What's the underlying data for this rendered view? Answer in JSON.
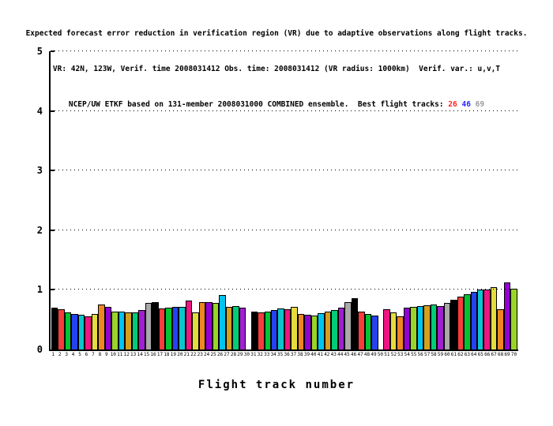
{
  "title": {
    "line1": "Expected forecast error reduction in verification region (VR) due to adaptive observations along flight tracks.",
    "line2": "VR: 42N, 123W, Verif. time 2008031412 Obs. time: 2008031412 (VR radius: 1000km)  Verif. var.: u,v,T",
    "line3_prefix": "NCEP/UW ETKF based on 131-member 2008031000 COMBINED ensemble.  Best flight tracks: ",
    "best_tracks": [
      {
        "label": "26",
        "color": "#ff2020"
      },
      {
        "label": "46",
        "color": "#2828ff"
      },
      {
        "label": "69",
        "color": "#9a9a9a"
      }
    ]
  },
  "chart_data": {
    "type": "bar",
    "title": "Expected forecast error reduction in verification region (VR) due to adaptive observations along flight tracks.",
    "subtitle1": "VR: 42N, 123W, Verif. time 2008031412 Obs. time: 2008031412 (VR radius: 1000km)  Verif. var.: u,v,T",
    "subtitle2": "NCEP/UW ETKF based on 131-member 2008031000 COMBINED ensemble.  Best flight tracks: 26 46 69",
    "xlabel": "Flight track number",
    "ylabel": "",
    "ylim": [
      0,
      5
    ],
    "yticks": [
      0,
      1,
      2,
      3,
      4,
      5
    ],
    "ytick_labels": [
      "0",
      "1",
      "2",
      "3",
      "4",
      "5"
    ],
    "grid": "horizontal dotted lines at y = 1,2,3,4,5; legend none",
    "best_flight_tracks": [
      26,
      46,
      69
    ],
    "categories": [
      1,
      2,
      3,
      4,
      5,
      6,
      7,
      8,
      9,
      10,
      11,
      12,
      13,
      14,
      15,
      16,
      17,
      18,
      19,
      20,
      21,
      22,
      23,
      24,
      25,
      26,
      27,
      28,
      29,
      30,
      31,
      32,
      33,
      34,
      35,
      36,
      37,
      38,
      39,
      40,
      41,
      42,
      43,
      44,
      45,
      46,
      47,
      48,
      49,
      50,
      51,
      52,
      53,
      54,
      55,
      56,
      57,
      58,
      59,
      60,
      61,
      62,
      63,
      64,
      65,
      66,
      67,
      68,
      69,
      70
    ],
    "values": [
      0.7,
      0.68,
      0.62,
      0.6,
      0.58,
      0.55,
      0.6,
      0.75,
      0.71,
      0.64,
      0.63,
      0.62,
      0.62,
      0.66,
      0.78,
      0.79,
      0.69,
      0.7,
      0.71,
      0.72,
      0.82,
      0.62,
      0.8,
      0.79,
      0.78,
      0.91,
      0.71,
      0.73,
      0.7,
      0,
      0.63,
      0.62,
      0.64,
      0.66,
      0.69,
      0.68,
      0.71,
      0.6,
      0.58,
      0.57,
      0.61,
      0.64,
      0.66,
      0.7,
      0.79,
      0.86,
      0.64,
      0.6,
      0.57,
      0,
      0.67,
      0.62,
      0.56,
      0.7,
      0.72,
      0.73,
      0.74,
      0.76,
      0.73,
      0.78,
      0.83,
      0.88,
      0.92,
      0.97,
      1.01,
      1.0,
      1.04,
      0.68,
      1.13,
      1.02
    ],
    "color_cycle_15": [
      "#000000",
      "#f83c3c",
      "#00c432",
      "#2442f0",
      "#0cc4cc",
      "#ee1482",
      "#e4dc3e",
      "#ee8722",
      "#9400d3",
      "#9ad428",
      "#00c4f0",
      "#d4a01e",
      "#00cc77",
      "#a020d0",
      "#a9a9a9"
    ],
    "color_rule": "bar i uses color_cycle_15[(i-1) mod 15]; bars 30 and 50 have zero height (not drawn)"
  }
}
